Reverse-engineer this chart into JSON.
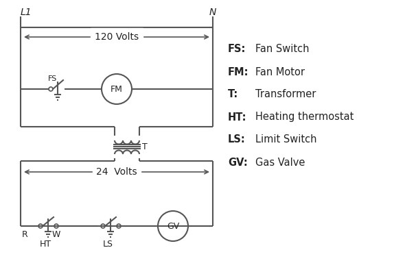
{
  "bg_color": "#ffffff",
  "line_color": "#555555",
  "text_color": "#222222",
  "legend_labels": [
    "FS:",
    "FM:",
    "T:",
    "HT:",
    "LS:",
    "GV:"
  ],
  "legend_values": [
    "Fan Switch",
    "Fan Motor",
    "Transformer",
    "Heating thermostat",
    "Limit Switch",
    "Gas Valve"
  ]
}
